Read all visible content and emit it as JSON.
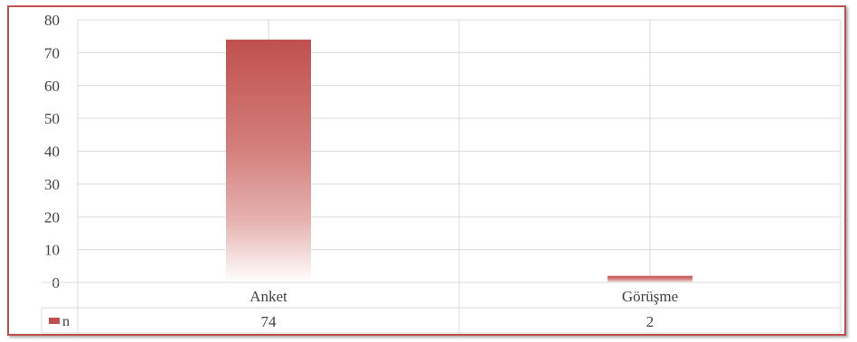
{
  "chart_data": {
    "type": "bar",
    "categories": [
      "Anket",
      "Görüşme"
    ],
    "series": [
      {
        "name": "n",
        "values": [
          74,
          2
        ]
      }
    ],
    "ylim": [
      0,
      80
    ],
    "yticks": [
      0,
      10,
      20,
      30,
      40,
      50,
      60,
      70,
      80
    ],
    "grid": true,
    "data_table": true,
    "colors": {
      "bar_top": "#c0504d",
      "bar_bottom": "#ffffff",
      "frame": "#c0504d",
      "grid": "#d9d9d9"
    }
  }
}
